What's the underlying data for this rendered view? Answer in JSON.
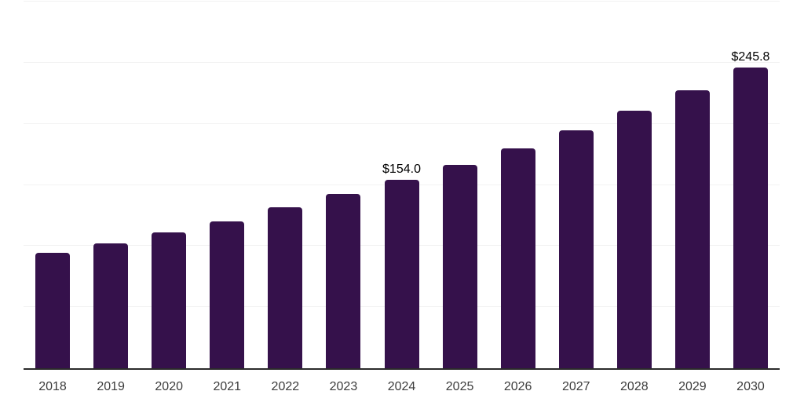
{
  "chart_data": {
    "type": "bar",
    "categories": [
      "2018",
      "2019",
      "2020",
      "2021",
      "2022",
      "2023",
      "2024",
      "2025",
      "2026",
      "2027",
      "2028",
      "2029",
      "2030"
    ],
    "values": [
      94.5,
      102.3,
      110.9,
      120.3,
      131.7,
      142.4,
      154.0,
      166.5,
      180.0,
      194.6,
      210.4,
      227.4,
      245.8
    ],
    "data_labels": [
      "",
      "",
      "",
      "",
      "",
      "",
      "$154.0",
      "",
      "",
      "",
      "",
      "",
      "$245.8"
    ],
    "ylim": [
      0,
      300
    ],
    "gridline_step": 50,
    "grid": "horizontal-only",
    "y_axis_labels_visible": false,
    "legend": "none",
    "bar_corner_radius": "rounded-top"
  },
  "colors": {
    "background": "#ffffff",
    "bar": "#35114B",
    "axis": "#2b2b2b",
    "gridline": "#f2f2f2",
    "tick_label": "#3c3c3c",
    "data_label": "#000000"
  }
}
